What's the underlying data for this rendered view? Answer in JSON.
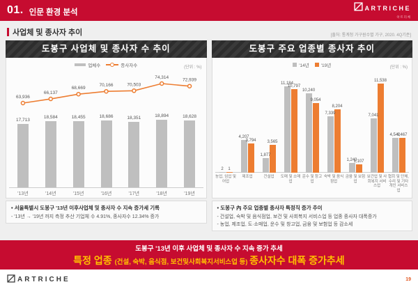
{
  "header": {
    "number": "01.",
    "title": "인문 환경 분석",
    "brand": "ARTRICHE",
    "brand_tagline": "아트리체"
  },
  "section": {
    "title": "사업체 및 종사자 추이",
    "source": "[출처: 통계청 가구원수별 가구, 2020. 4Q기준]"
  },
  "panels": {
    "left": {
      "unit": "(단위 : %)",
      "note_title": "서울특별시 도봉구 '13년 이후사업체 및 종사자 수  지속 증가세 기록",
      "note_sub": "- '13년 → '19년 까지 측정 추산 기업체 수 4.91%, 종사자수 12.34% 증가"
    },
    "right": {
      "unit": "(단위 : %)",
      "note_title": "도봉구 內 주요 업종별 종사자 특정직 증가 추이",
      "note_sub1": "- 건설업, 숙박 및 음식점업, 보건 및 사회복지 서비스업 등 업종 종사자 대폭증가",
      "note_sub2": "- 농업, 제조업, 도·소매업, 운수 및 창고업, 금융 및 보험업 등 감소세"
    }
  },
  "banner": {
    "line1": "도봉구 '13년 이후 사업체 및 종사자 수 지속 증가 추세",
    "line2_prefix": "특정 업종 ",
    "line2_paren": "(건설, 숙박, 음식점, 보건및사회복지서비스업 등) ",
    "line2_suffix": "종사자수 대폭 증가추세"
  },
  "footer": {
    "brand": "ARTRICHE",
    "page": "19"
  },
  "colors": {
    "accent_red": "#C60C30",
    "orange": "#ED7D31",
    "bar_gray": "#BFBFBF",
    "gold": "#FFC000"
  },
  "chart_data": [
    {
      "type": "bar",
      "title": "도봉구 사업체 및 종사자 수 추이",
      "unit": "(단위 : %)",
      "categories": [
        "'13년",
        "'14년",
        "'15년",
        "'16년",
        "'17년",
        "'18년",
        "'19년"
      ],
      "series": [
        {
          "name": "업체수",
          "type": "bar",
          "color": "#BFBFBF",
          "values": [
            17713,
            18584,
            18455,
            18686,
            18351,
            18894,
            18628
          ]
        },
        {
          "name": "종사자수",
          "type": "line",
          "color": "#ED7D31",
          "values": [
            63936,
            66137,
            68669,
            70166,
            70503,
            74314,
            72939
          ]
        }
      ],
      "legend_position": "top",
      "grid": false
    },
    {
      "type": "bar",
      "title": "도봉구 주요 업종별 종사자 추이",
      "unit": "(단위 : %)",
      "categories": [
        "농업, 임업 및 어업",
        "제조업",
        "건설업",
        "도매 및 소매업",
        "운수 및 창고업",
        "숙박 및 음식점업",
        "금융 및 보험업",
        "보건업 및 사회복지 서비스업",
        "협회 및 단체, 수리 및 기타 개인 서비스업"
      ],
      "series": [
        {
          "name": "'14년",
          "type": "bar",
          "color": "#BFBFBF",
          "values": [
            2,
            4207,
            1877,
            11184,
            10240,
            7339,
            1243,
            7041,
            4542
          ]
        },
        {
          "name": "'19년",
          "type": "bar",
          "color": "#ED7D31",
          "values": [
            1,
            3794,
            3565,
            10797,
            9054,
            8204,
            1107,
            11538,
            4467
          ]
        }
      ],
      "legend_position": "top",
      "grid": false
    }
  ]
}
